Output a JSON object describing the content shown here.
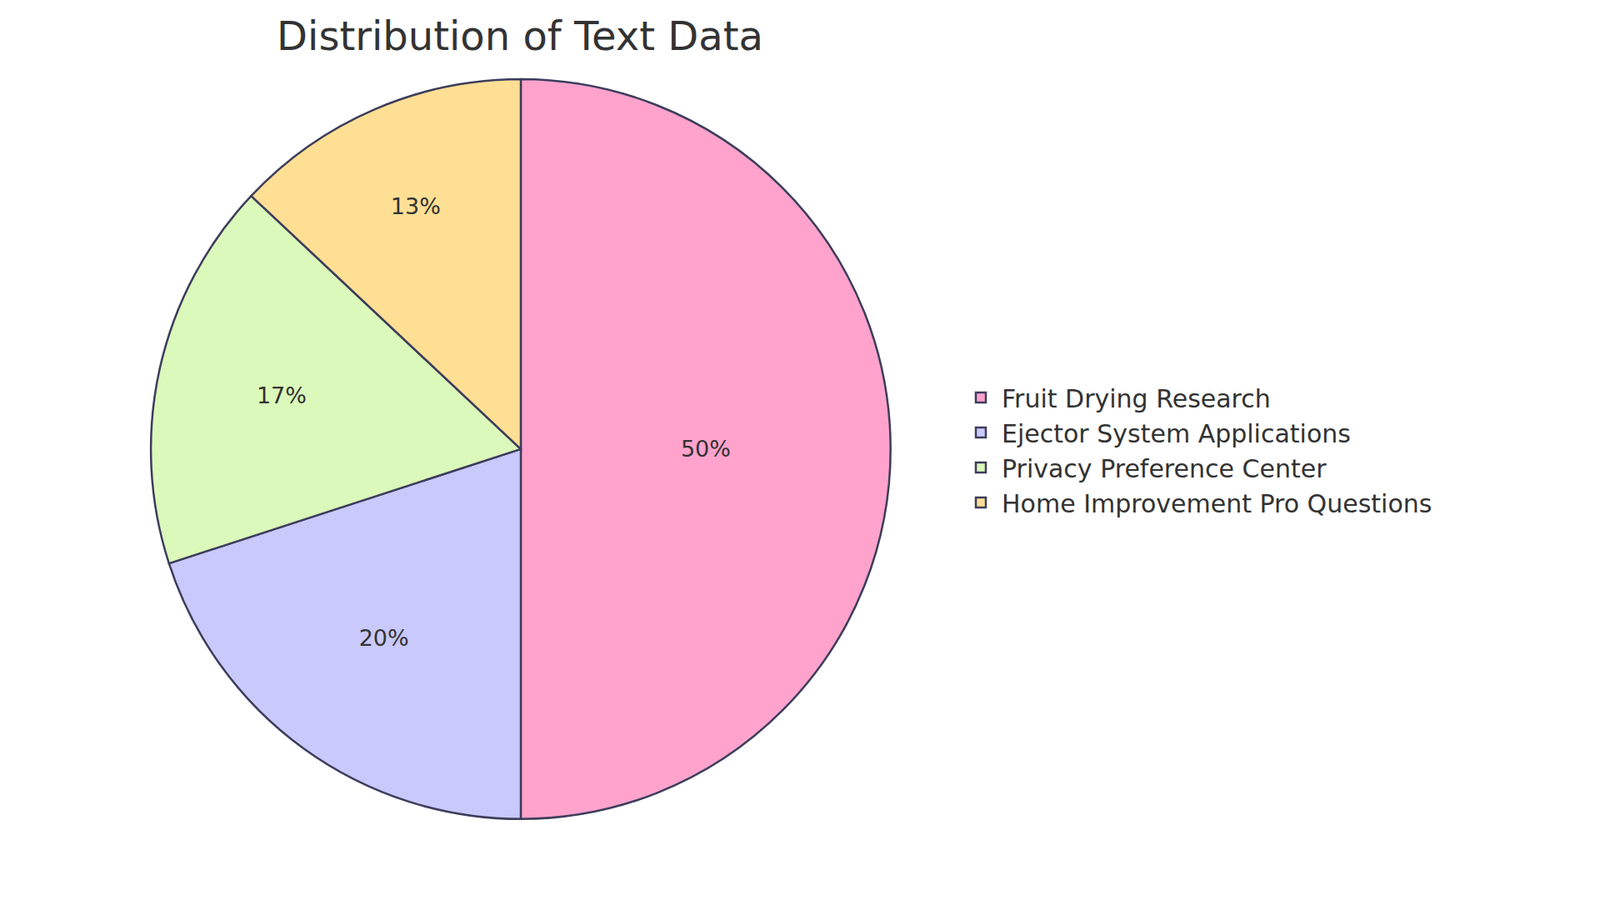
{
  "chart_data": {
    "type": "pie",
    "title": "Distribution of Text Data",
    "categories": [
      "Fruit Drying Research",
      "Ejector System Applications",
      "Privacy Preference Center",
      "Home Improvement Pro Questions"
    ],
    "values": [
      50,
      20,
      17,
      13
    ],
    "value_labels": [
      "50%",
      "20%",
      "17%",
      "13%"
    ],
    "colors": [
      "#ffa3cd",
      "#c9c9fc",
      "#dbf9ba",
      "#fedf94"
    ],
    "data_labels": true,
    "legend": "right"
  }
}
